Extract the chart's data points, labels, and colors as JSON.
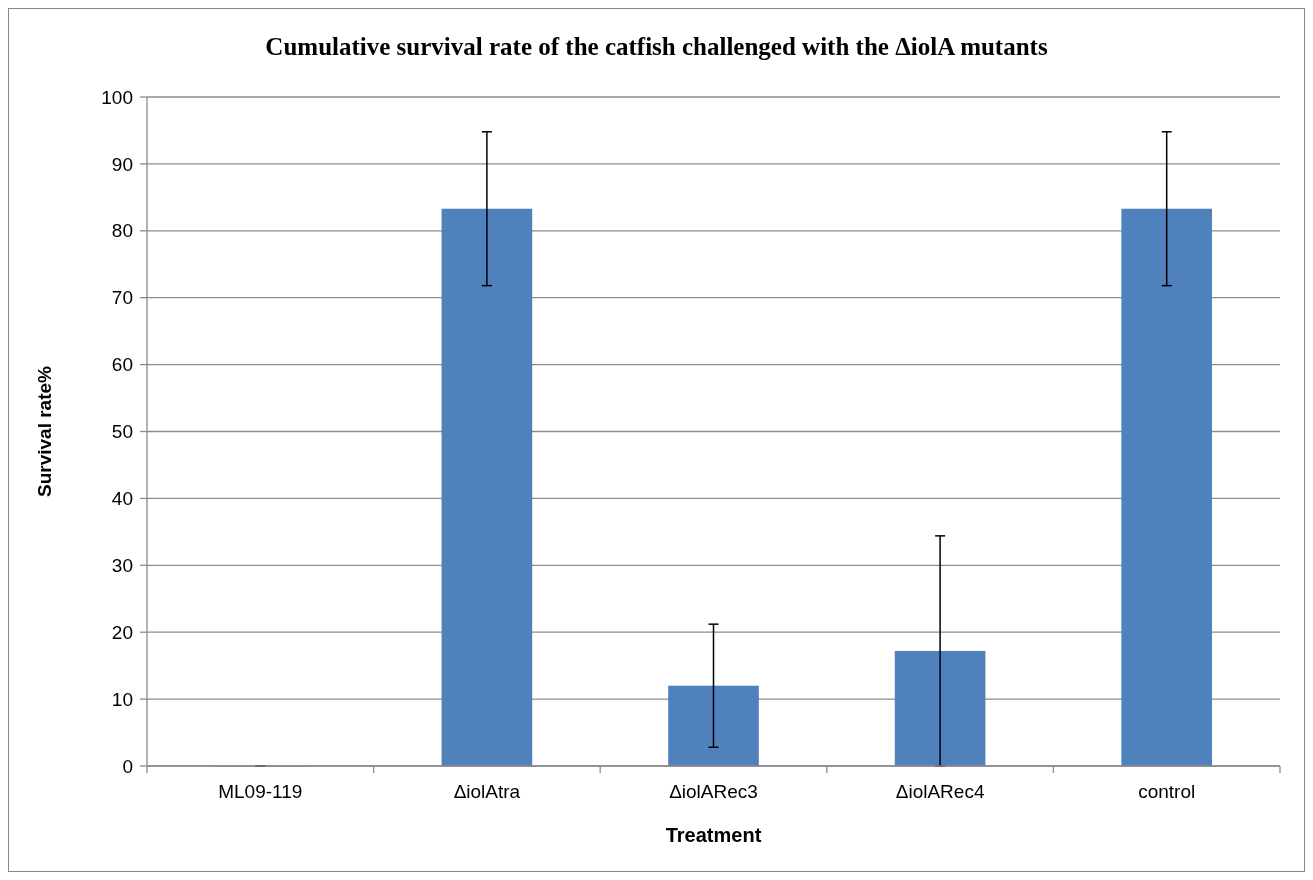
{
  "chart_data": {
    "type": "bar",
    "title": "Cumulative survival rate of the catfish challenged with the ΔiolA  mutants",
    "xlabel": "Treatment",
    "ylabel": "Survival rate%",
    "categories": [
      "ML09-119",
      "ΔiolAtra",
      "ΔiolARec3",
      "ΔiolARec4",
      "control"
    ],
    "values": [
      0,
      83.3,
      12,
      17.2,
      83.3
    ],
    "errors": [
      0,
      11.5,
      9.2,
      17.2,
      11.5
    ],
    "color": "#4f81bd",
    "ylim": [
      0,
      100
    ],
    "yticks": [
      0,
      10,
      20,
      30,
      40,
      50,
      60,
      70,
      80,
      90,
      100
    ],
    "grid": "y"
  }
}
